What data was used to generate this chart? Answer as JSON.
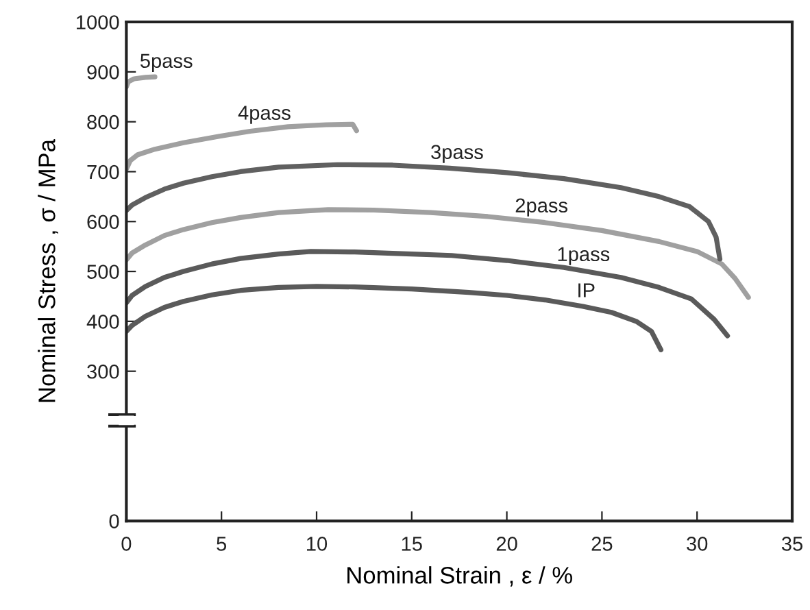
{
  "chart_data": {
    "type": "line",
    "xlabel": "Nominal Strain , ε / %",
    "ylabel": "Nominal Stress , σ / MPa",
    "xlim": [
      0,
      35
    ],
    "xticks": [
      0,
      5,
      10,
      15,
      20,
      25,
      30,
      35
    ],
    "ylim": [
      0,
      1000
    ],
    "yticks": [
      0,
      300,
      400,
      500,
      600,
      700,
      800,
      900,
      1000
    ],
    "grid": false,
    "legend": false,
    "marker": "none",
    "line_style": "solid",
    "series": [
      {
        "name": "IP",
        "color": "#5a5a5a",
        "x": [
          0,
          0.3,
          1,
          2,
          3,
          4.5,
          6,
          8,
          10,
          12,
          15,
          18,
          20,
          22,
          24,
          25.5,
          26.8,
          27.6,
          28.1
        ],
        "values": [
          380,
          392,
          410,
          428,
          440,
          453,
          462,
          468,
          470,
          469,
          465,
          458,
          452,
          443,
          430,
          418,
          400,
          380,
          343
        ]
      },
      {
        "name": "1pass",
        "color": "#5a5a5a",
        "x": [
          0,
          0.3,
          1,
          2,
          3,
          4.5,
          6,
          8,
          9.7,
          12,
          15,
          17.1,
          20,
          23,
          26,
          28,
          29.7,
          30.9,
          31.6
        ],
        "values": [
          437,
          452,
          470,
          488,
          500,
          515,
          526,
          535,
          540,
          539,
          535,
          532,
          522,
          508,
          488,
          468,
          445,
          404,
          371
        ]
      },
      {
        "name": "2pass",
        "color": "#a0a0a0",
        "x": [
          0,
          0.3,
          1,
          2,
          3,
          4.5,
          6,
          8,
          10.6,
          13,
          16,
          19,
          22,
          25,
          28,
          30,
          31.3,
          32,
          32.7
        ],
        "values": [
          523,
          537,
          553,
          572,
          584,
          598,
          608,
          618,
          624,
          623,
          618,
          610,
          598,
          582,
          560,
          540,
          515,
          486,
          448
        ]
      },
      {
        "name": "3pass",
        "color": "#606060",
        "x": [
          0,
          0.3,
          1,
          2,
          3,
          4.5,
          6,
          8,
          11.1,
          14,
          17,
          20,
          23,
          26,
          28,
          29.6,
          30.6,
          31.0,
          31.2
        ],
        "values": [
          622,
          633,
          648,
          665,
          677,
          690,
          700,
          709,
          714,
          713,
          707,
          698,
          686,
          668,
          650,
          630,
          600,
          569,
          525
        ]
      },
      {
        "name": "4pass",
        "color": "#a0a0a0",
        "x": [
          0,
          0.2,
          0.6,
          1.5,
          3,
          4.9,
          6.5,
          8.5,
          10.5,
          11.9,
          12.1
        ],
        "values": [
          705,
          722,
          734,
          745,
          758,
          771,
          781,
          790,
          794,
          795,
          782
        ]
      },
      {
        "name": "5pass",
        "color": "#a0a0a0",
        "x": [
          0,
          0.1,
          0.4,
          1,
          1.5
        ],
        "values": [
          870,
          880,
          886,
          889,
          890
        ]
      }
    ]
  }
}
